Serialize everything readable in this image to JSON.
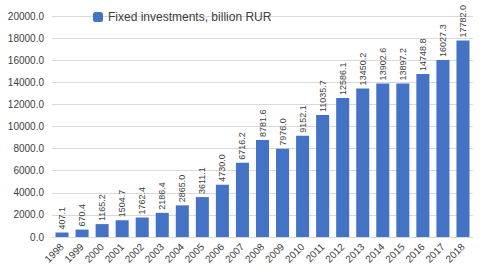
{
  "chart_data": {
    "type": "bar",
    "categories": [
      "1998",
      "1999",
      "2000",
      "2001",
      "2002",
      "2003",
      "2004",
      "2005",
      "2006",
      "2007",
      "2008",
      "2009",
      "2010",
      "2011",
      "2012",
      "2013",
      "2014",
      "2015",
      "2016",
      "2017",
      "2018"
    ],
    "series": [
      {
        "name": "Fixed investments, billion RUR",
        "color": "#4472c4",
        "values": [
          407.1,
          670.4,
          1165.2,
          1504.7,
          1762.4,
          2186.4,
          2865.0,
          3611.1,
          4730.0,
          6716.2,
          8781.6,
          7976.0,
          9152.1,
          11035.7,
          12586.1,
          13450.2,
          13902.6,
          13897.2,
          14748.8,
          16027.3,
          17782.0
        ],
        "value_labels": [
          "407.1",
          "670.4",
          "1165.2",
          "1504.7",
          "1762.4",
          "2186.4",
          "2865.0",
          "3611.1",
          "4730.0",
          "6716.2",
          "8781.6",
          "7976.0",
          "9152.1",
          "11035.7",
          "12586.1",
          "13450.2",
          "13902.6",
          "13897.2",
          "14748.8",
          "16027.3",
          "17782.0"
        ]
      }
    ],
    "ylim": [
      0,
      20000
    ],
    "yticks": [
      {
        "value": 0,
        "label": "0.0"
      },
      {
        "value": 2000,
        "label": "2000.0"
      },
      {
        "value": 4000,
        "label": "4000.0"
      },
      {
        "value": 6000,
        "label": "6000.0"
      },
      {
        "value": 8000,
        "label": "8000.0"
      },
      {
        "value": 10000,
        "label": "10000.0"
      },
      {
        "value": 12000,
        "label": "12000.0"
      },
      {
        "value": 14000,
        "label": "14000.0"
      },
      {
        "value": 16000,
        "label": "16000.0"
      },
      {
        "value": 18000,
        "label": "18000.0"
      },
      {
        "value": 20000,
        "label": "20000.0"
      }
    ],
    "grid": true,
    "legend": "upper left",
    "data_labels": true
  }
}
